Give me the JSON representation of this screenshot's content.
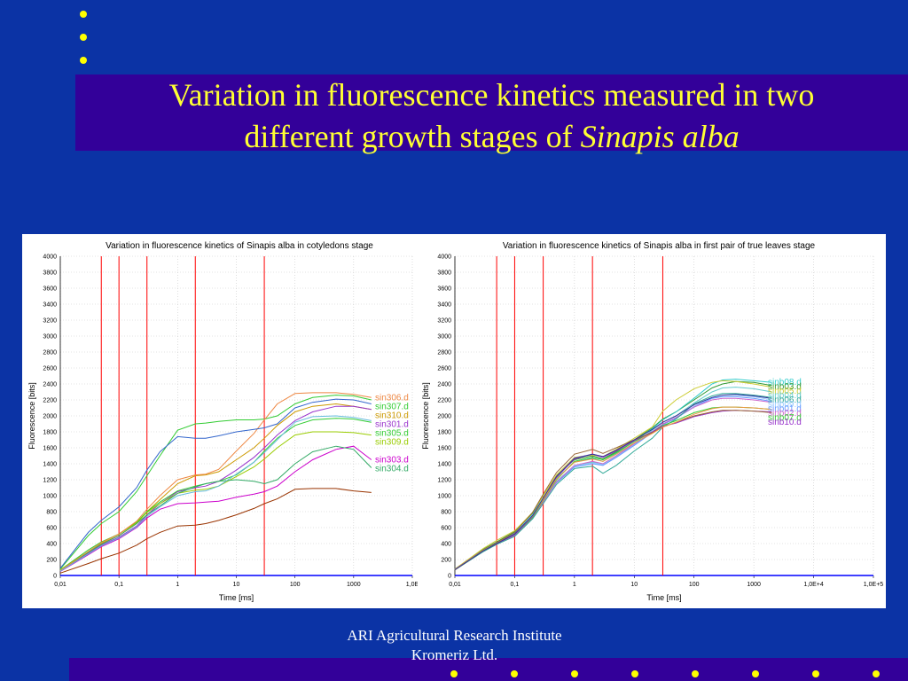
{
  "slide": {
    "title_line1": "Variation in fluorescence kinetics measured in two",
    "title_line2": "different growth stages of ",
    "title_italic": "Sinapis alba",
    "footer_line1": "ARI   Agricultural Research Institute",
    "footer_line2": "Kromeriz Ltd.",
    "background_color": "#0b33a5",
    "band_color": "#330099",
    "title_color": "#ffff33",
    "bullet_color": "#ffff00"
  },
  "chart_data": [
    {
      "type": "line",
      "title": "Variation in fluorescence kinetics of Sinapis alba in cotyledons stage",
      "xlabel": "Time [ms]",
      "ylabel": "Fluorescence [bits]",
      "xscale": "log",
      "xlim": [
        0.01,
        10000
      ],
      "ylim": [
        0,
        4000
      ],
      "x_tick_labels": [
        "0,01",
        "0,1",
        "1",
        "10",
        "100",
        "1000",
        "1,0E"
      ],
      "y_ticks": [
        0,
        200,
        400,
        600,
        800,
        1000,
        1200,
        1400,
        1600,
        1800,
        2000,
        2200,
        2400,
        2600,
        2800,
        3000,
        3200,
        3400,
        3600,
        3800,
        4000
      ],
      "grid": true,
      "vlines_x": [
        0.05,
        0.1,
        0.3,
        2,
        30
      ],
      "vline_color": "#ff0000",
      "x": [
        0.01,
        0.03,
        0.05,
        0.1,
        0.2,
        0.3,
        0.5,
        1,
        2,
        3,
        5,
        10,
        20,
        30,
        50,
        100,
        200,
        500,
        1000,
        2000
      ],
      "series": [
        {
          "name": "sin307.d",
          "color": "#33cc33",
          "values": [
            80,
            500,
            650,
            800,
            1050,
            1250,
            1500,
            1820,
            1900,
            1910,
            1930,
            1950,
            1950,
            1960,
            2000,
            2150,
            2230,
            2260,
            2250,
            2200
          ]
        },
        {
          "name": "sin310.d",
          "color": "#cc9900",
          "values": [
            60,
            300,
            400,
            500,
            650,
            800,
            950,
            1150,
            1250,
            1260,
            1300,
            1450,
            1600,
            1720,
            1880,
            2050,
            2120,
            2150,
            2120,
            2080
          ]
        },
        {
          "name": "sin301.d",
          "color": "#9933cc",
          "values": [
            60,
            280,
            380,
            480,
            620,
            760,
            900,
            1050,
            1100,
            1120,
            1180,
            1320,
            1480,
            1600,
            1760,
            1940,
            2050,
            2120,
            2120,
            2080
          ]
        },
        {
          "name": "sin305.d",
          "color": "#33cc33",
          "values": [
            70,
            320,
            420,
            520,
            670,
            800,
            920,
            1060,
            1120,
            1150,
            1180,
            1260,
            1420,
            1560,
            1720,
            1880,
            1950,
            1970,
            1960,
            1920
          ]
        },
        {
          "name": "sin309.d",
          "color": "#99cc00",
          "values": [
            70,
            300,
            410,
            520,
            660,
            790,
            900,
            1030,
            1070,
            1080,
            1120,
            1240,
            1360,
            1460,
            1600,
            1760,
            1800,
            1800,
            1790,
            1760
          ]
        },
        {
          "name": "sin303.d",
          "color": "#cc00cc",
          "values": [
            50,
            260,
            360,
            460,
            600,
            720,
            830,
            900,
            910,
            920,
            930,
            980,
            1020,
            1050,
            1120,
            1300,
            1450,
            1580,
            1620,
            1450
          ]
        },
        {
          "name": "sin304.d",
          "color": "#33aa66",
          "values": [
            60,
            290,
            390,
            500,
            650,
            760,
            870,
            1030,
            1110,
            1150,
            1180,
            1200,
            1180,
            1150,
            1200,
            1400,
            1550,
            1620,
            1580,
            1350
          ]
        },
        {
          "name": "sin306.d",
          "color": "#ee8844",
          "values": [
            60,
            300,
            410,
            520,
            680,
            830,
            1000,
            1200,
            1260,
            1270,
            1330,
            1560,
            1780,
            1950,
            2150,
            2280,
            2290,
            2290,
            2270,
            2230
          ]
        },
        {
          "name": "",
          "color": "#993300",
          "values": [
            30,
            150,
            210,
            280,
            380,
            460,
            540,
            620,
            630,
            650,
            690,
            760,
            840,
            900,
            960,
            1080,
            1090,
            1090,
            1060,
            1040
          ]
        },
        {
          "name": "",
          "color": "#3366cc",
          "values": [
            90,
            540,
            690,
            860,
            1100,
            1320,
            1550,
            1740,
            1720,
            1720,
            1750,
            1800,
            1830,
            1850,
            1900,
            2100,
            2170,
            2210,
            2200,
            2150
          ]
        },
        {
          "name": "",
          "color": "#66bbdd",
          "values": [
            55,
            270,
            370,
            470,
            610,
            740,
            860,
            1000,
            1050,
            1060,
            1120,
            1270,
            1420,
            1540,
            1700,
            1920,
            1990,
            2000,
            1980,
            1940
          ]
        }
      ]
    },
    {
      "type": "line",
      "title": "Variation in fluorescence kinetics of Sinapis alba in first pair of true leaves stage",
      "xlabel": "Time [ms]",
      "ylabel": "Fluorescence [bits]",
      "xscale": "log",
      "xlim": [
        0.01,
        100000
      ],
      "ylim": [
        0,
        4000
      ],
      "x_tick_labels": [
        "0,01",
        "0,1",
        "1",
        "10",
        "100",
        "1000",
        "1,0E+4",
        "1,0E+5"
      ],
      "y_ticks": [
        0,
        200,
        400,
        600,
        800,
        1000,
        1200,
        1400,
        1600,
        1800,
        2000,
        2200,
        2400,
        2600,
        2800,
        3000,
        3200,
        3400,
        3600,
        3800,
        4000
      ],
      "grid": true,
      "vlines_x": [
        0.05,
        0.1,
        0.3,
        2,
        30
      ],
      "vline_color": "#ff0000",
      "x": [
        0.01,
        0.03,
        0.05,
        0.1,
        0.2,
        0.3,
        0.5,
        1,
        2,
        3,
        5,
        10,
        20,
        30,
        50,
        100,
        200,
        300,
        500,
        1000,
        2000
      ],
      "series": [
        {
          "name": "sinb03.d",
          "color": "#339933",
          "values": [
            80,
            330,
            420,
            550,
            780,
            1000,
            1250,
            1450,
            1500,
            1460,
            1550,
            1700,
            1850,
            1960,
            2050,
            2200,
            2350,
            2400,
            2430,
            2420,
            2380
          ]
        },
        {
          "name": "sinb08.d",
          "color": "#33cccc",
          "values": [
            80,
            320,
            410,
            530,
            760,
            970,
            1220,
            1420,
            1470,
            1430,
            1530,
            1680,
            1840,
            1950,
            2050,
            2220,
            2400,
            2450,
            2460,
            2440,
            2420
          ]
        },
        {
          "name": "sinb04.d",
          "color": "#66cccc",
          "values": [
            75,
            320,
            410,
            520,
            740,
            940,
            1180,
            1380,
            1420,
            1400,
            1500,
            1660,
            1820,
            1920,
            2000,
            2160,
            2300,
            2350,
            2360,
            2340,
            2300
          ]
        },
        {
          "name": "sinb09.d",
          "color": "#99ccff",
          "values": [
            75,
            310,
            400,
            510,
            730,
            930,
            1170,
            1370,
            1410,
            1390,
            1490,
            1640,
            1800,
            1900,
            1980,
            2120,
            2230,
            2260,
            2260,
            2240,
            2200
          ]
        },
        {
          "name": "sinb01.d",
          "color": "#6699ff",
          "values": [
            70,
            310,
            400,
            500,
            720,
            920,
            1160,
            1360,
            1400,
            1380,
            1480,
            1630,
            1790,
            1890,
            1970,
            2110,
            2220,
            2240,
            2240,
            2220,
            2180
          ]
        },
        {
          "name": "sinb02.d",
          "color": "#cc66cc",
          "values": [
            70,
            300,
            390,
            500,
            720,
            920,
            1170,
            1380,
            1430,
            1400,
            1500,
            1650,
            1800,
            1900,
            1980,
            2110,
            2200,
            2220,
            2220,
            2200,
            2170
          ]
        },
        {
          "name": "sinb06.d",
          "color": "#33aa99",
          "values": [
            70,
            300,
            390,
            490,
            710,
            900,
            1140,
            1340,
            1370,
            1280,
            1380,
            1560,
            1720,
            1860,
            1960,
            2150,
            2250,
            2280,
            2280,
            2260,
            2230
          ]
        },
        {
          "name": "sinb07.d",
          "color": "#33cc33",
          "values": [
            70,
            310,
            400,
            510,
            730,
            940,
            1200,
            1430,
            1480,
            1450,
            1540,
            1680,
            1800,
            1880,
            1940,
            2040,
            2100,
            2110,
            2110,
            2100,
            2080
          ]
        },
        {
          "name": "sinb05.d",
          "color": "#cccc33",
          "values": [
            80,
            340,
            440,
            560,
            790,
            1000,
            1260,
            1480,
            1510,
            1490,
            1580,
            1720,
            1860,
            2060,
            2200,
            2340,
            2420,
            2440,
            2430,
            2400,
            2360
          ]
        },
        {
          "name": "sinb10.d",
          "color": "#9933cc",
          "values": [
            75,
            320,
            400,
            510,
            740,
            960,
            1230,
            1460,
            1520,
            1480,
            1560,
            1690,
            1800,
            1870,
            1910,
            1990,
            2040,
            2060,
            2070,
            2060,
            2050
          ]
        },
        {
          "name": "",
          "color": "#996633",
          "values": [
            70,
            320,
            410,
            540,
            790,
            1020,
            1290,
            1520,
            1580,
            1530,
            1600,
            1700,
            1790,
            1860,
            1920,
            2000,
            2050,
            2070,
            2070,
            2060,
            2040
          ]
        },
        {
          "name": "",
          "color": "#ee9944",
          "values": [
            72,
            315,
            405,
            520,
            745,
            950,
            1210,
            1420,
            1460,
            1430,
            1520,
            1660,
            1780,
            1860,
            1920,
            2020,
            2090,
            2110,
            2110,
            2100,
            2080
          ]
        },
        {
          "name": "",
          "color": "#333399",
          "values": [
            72,
            310,
            400,
            520,
            750,
            970,
            1240,
            1470,
            1520,
            1490,
            1570,
            1700,
            1830,
            1920,
            2000,
            2140,
            2230,
            2260,
            2270,
            2250,
            2220
          ]
        }
      ]
    }
  ]
}
